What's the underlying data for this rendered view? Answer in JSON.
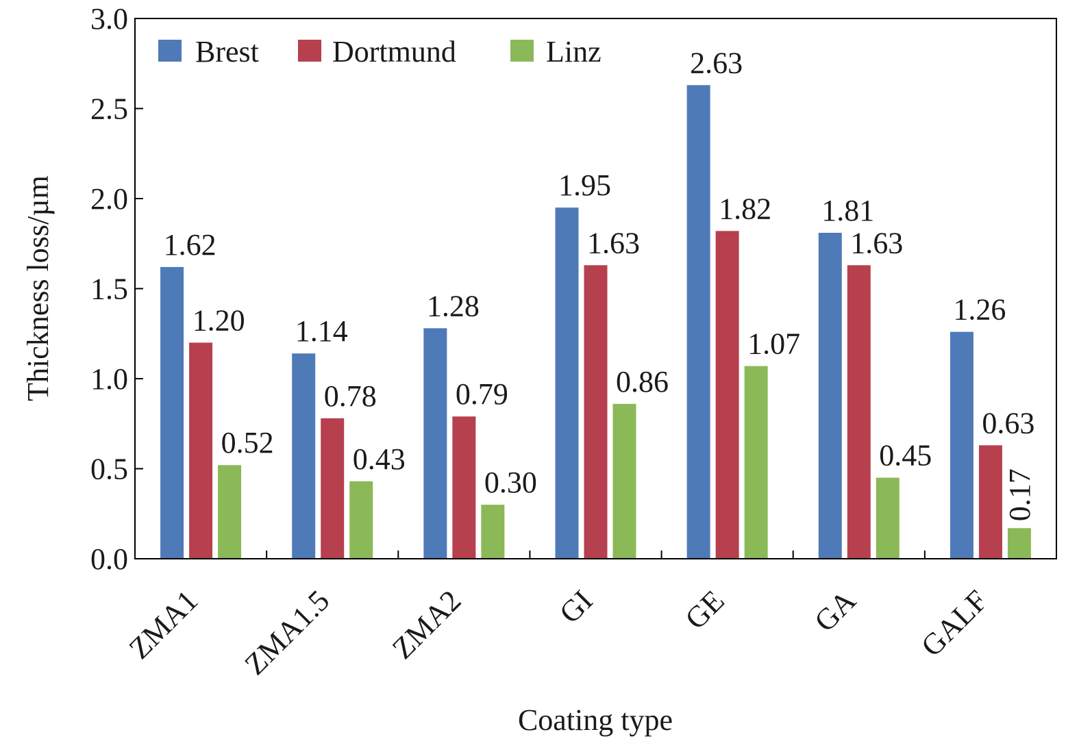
{
  "chart_data": {
    "type": "bar",
    "title": "",
    "xlabel": "Coating type",
    "ylabel": "Thickness loss/µm",
    "ylim": [
      0,
      3.0
    ],
    "yticks": [
      "0.0",
      "0.5",
      "1.0",
      "1.5",
      "2.0",
      "2.5",
      "3.0"
    ],
    "categories": [
      "ZMA1",
      "ZMA1.5",
      "ZMA2",
      "GI",
      "GE",
      "GA",
      "GALF"
    ],
    "series": [
      {
        "name": "Brest",
        "color": "#4f7ab8",
        "values": [
          1.62,
          1.14,
          1.28,
          1.95,
          2.63,
          1.81,
          1.26
        ],
        "labels": [
          "1.62",
          "1.14",
          "1.28",
          "1.95",
          "2.63",
          "1.81",
          "1.26"
        ]
      },
      {
        "name": "Dortmund",
        "color": "#b6404e",
        "values": [
          1.2,
          0.78,
          0.79,
          1.63,
          1.82,
          1.63,
          0.63
        ],
        "labels": [
          "1.20",
          "0.78",
          "0.79",
          "1.63",
          "1.82",
          "1.63",
          "0.63"
        ]
      },
      {
        "name": "Linz",
        "color": "#8bb957",
        "values": [
          0.52,
          0.43,
          0.3,
          0.86,
          1.07,
          0.45,
          0.17
        ],
        "labels": [
          "0.52",
          "0.43",
          "0.30",
          "0.86",
          "1.07",
          "0.45",
          "0.17"
        ]
      }
    ],
    "legend_position": "top-left",
    "grid": false
  }
}
